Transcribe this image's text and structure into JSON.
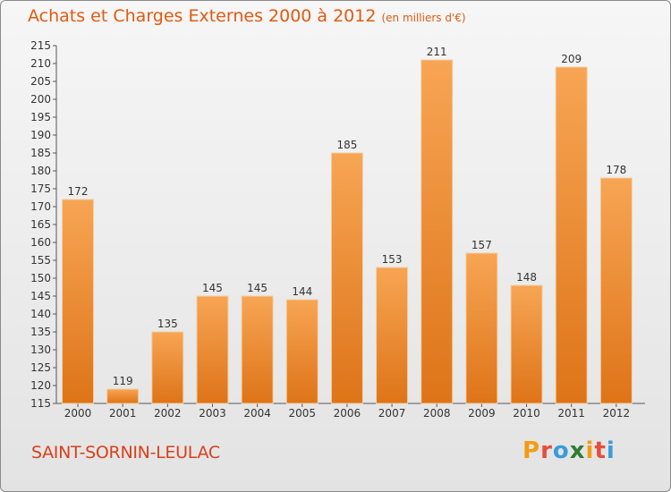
{
  "header": {
    "title": "Achats et Charges Externes 2000 à 2012",
    "subtitle": "(en milliers d'€)"
  },
  "footer": {
    "town": "SAINT-SORNIN-LEULAC",
    "logo": "Proxiti"
  },
  "colors": {
    "title": "#e05a10",
    "bar_top": "#f7a554",
    "bar_bottom": "#de7418",
    "town": "#d9401a",
    "logo_letters": [
      "#f39c12",
      "#e74c3c",
      "#3b9bd9",
      "#2e7d32",
      "#f39c12",
      "#e74c3c",
      "#3b9bd9"
    ]
  },
  "chart_data": {
    "type": "bar",
    "title": "Achats et Charges Externes 2000 à 2012",
    "subtitle": "(en milliers d'€)",
    "categories": [
      "2000",
      "2001",
      "2002",
      "2003",
      "2004",
      "2005",
      "2006",
      "2007",
      "2008",
      "2009",
      "2010",
      "2011",
      "2012"
    ],
    "values": [
      172,
      119,
      135,
      145,
      145,
      144,
      185,
      153,
      211,
      157,
      148,
      209,
      178
    ],
    "ylim": [
      115,
      215
    ],
    "yticks": [
      115,
      120,
      125,
      130,
      135,
      140,
      145,
      150,
      155,
      160,
      165,
      170,
      175,
      180,
      185,
      190,
      195,
      200,
      205,
      210,
      215
    ],
    "grid": false,
    "data_labels": true
  }
}
